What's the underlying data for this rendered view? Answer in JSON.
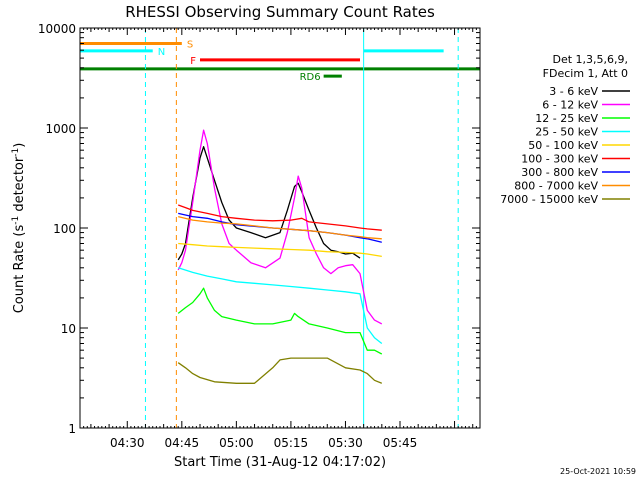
{
  "chart_data": {
    "type": "line",
    "title": "RHESSI Observing Summary Count Rates",
    "xlabel": "Start Time (31-Aug-12 04:17:02)",
    "ylabel_main": "Count Rate (s",
    "ylabel_sup1": "-1",
    "ylabel_mid": " detector",
    "ylabel_sup2": "-1",
    "ylabel_end": ")",
    "timestamp": "25-Oct-2021 10:59",
    "y_scale": "log",
    "ylim": [
      1,
      10000
    ],
    "xlim_minutes": [
      257,
      367
    ],
    "x_ticks": [
      {
        "label": "04:30",
        "t": 270
      },
      {
        "label": "04:45",
        "t": 285
      },
      {
        "label": "05:00",
        "t": 300
      },
      {
        "label": "05:15",
        "t": 315
      },
      {
        "label": "05:30",
        "t": 330
      },
      {
        "label": "05:45",
        "t": 345
      }
    ],
    "y_ticks": [
      {
        "label": "1",
        "v": 1
      },
      {
        "label": "10",
        "v": 10
      },
      {
        "label": "100",
        "v": 100
      },
      {
        "label": "1000",
        "v": 1000
      },
      {
        "label": "10000",
        "v": 10000
      }
    ],
    "legend_header": [
      "Det 1,3,5,6,9,",
      "FDecim 1, Att 0"
    ],
    "series": [
      {
        "name": "3 - 6 keV",
        "color": "#000000",
        "points": [
          [
            284,
            48
          ],
          [
            285,
            55
          ],
          [
            286,
            70
          ],
          [
            288,
            200
          ],
          [
            290,
            500
          ],
          [
            291,
            650
          ],
          [
            292,
            500
          ],
          [
            294,
            300
          ],
          [
            296,
            180
          ],
          [
            298,
            120
          ],
          [
            300,
            100
          ],
          [
            304,
            90
          ],
          [
            308,
            80
          ],
          [
            312,
            90
          ],
          [
            314,
            150
          ],
          [
            316,
            260
          ],
          [
            317,
            280
          ],
          [
            318,
            230
          ],
          [
            320,
            150
          ],
          [
            322,
            100
          ],
          [
            324,
            70
          ],
          [
            326,
            60
          ],
          [
            328,
            58
          ],
          [
            330,
            55
          ],
          [
            332,
            56
          ],
          [
            334,
            50
          ]
        ]
      },
      {
        "name": "6 - 12 keV",
        "color": "#ff00ff",
        "points": [
          [
            284,
            38
          ],
          [
            285,
            45
          ],
          [
            286,
            60
          ],
          [
            288,
            180
          ],
          [
            290,
            600
          ],
          [
            291,
            950
          ],
          [
            292,
            700
          ],
          [
            294,
            250
          ],
          [
            296,
            110
          ],
          [
            298,
            70
          ],
          [
            300,
            60
          ],
          [
            304,
            45
          ],
          [
            308,
            40
          ],
          [
            312,
            50
          ],
          [
            314,
            90
          ],
          [
            316,
            200
          ],
          [
            317,
            330
          ],
          [
            318,
            250
          ],
          [
            320,
            80
          ],
          [
            322,
            55
          ],
          [
            324,
            40
          ],
          [
            326,
            35
          ],
          [
            328,
            40
          ],
          [
            330,
            42
          ],
          [
            332,
            43
          ],
          [
            334,
            35
          ],
          [
            336,
            15
          ],
          [
            338,
            12
          ],
          [
            340,
            11
          ]
        ]
      },
      {
        "name": "12 - 25 keV",
        "color": "#00ff00",
        "points": [
          [
            284,
            14
          ],
          [
            286,
            16
          ],
          [
            288,
            18
          ],
          [
            290,
            22
          ],
          [
            291,
            25
          ],
          [
            292,
            20
          ],
          [
            294,
            15
          ],
          [
            296,
            13
          ],
          [
            300,
            12
          ],
          [
            305,
            11
          ],
          [
            310,
            11
          ],
          [
            315,
            12
          ],
          [
            316,
            14
          ],
          [
            317,
            13
          ],
          [
            320,
            11
          ],
          [
            325,
            10
          ],
          [
            330,
            9
          ],
          [
            334,
            9
          ],
          [
            336,
            6
          ],
          [
            338,
            6
          ],
          [
            340,
            5.5
          ]
        ]
      },
      {
        "name": "25 - 50 keV",
        "color": "#00ffff",
        "points": [
          [
            284,
            40
          ],
          [
            288,
            36
          ],
          [
            292,
            33
          ],
          [
            296,
            31
          ],
          [
            300,
            29
          ],
          [
            305,
            28
          ],
          [
            310,
            27
          ],
          [
            315,
            26
          ],
          [
            320,
            25
          ],
          [
            325,
            24
          ],
          [
            330,
            23
          ],
          [
            334,
            22
          ],
          [
            336,
            10
          ],
          [
            338,
            8
          ],
          [
            340,
            7
          ]
        ]
      },
      {
        "name": "50 - 100 keV",
        "color": "#ffd700",
        "points": [
          [
            284,
            70
          ],
          [
            288,
            68
          ],
          [
            292,
            66
          ],
          [
            296,
            65
          ],
          [
            300,
            64
          ],
          [
            305,
            63
          ],
          [
            310,
            62
          ],
          [
            315,
            61
          ],
          [
            320,
            60
          ],
          [
            325,
            58
          ],
          [
            330,
            57
          ],
          [
            334,
            56
          ],
          [
            336,
            55
          ],
          [
            340,
            52
          ]
        ]
      },
      {
        "name": "100 - 300 keV",
        "color": "#ff0000",
        "points": [
          [
            284,
            170
          ],
          [
            286,
            160
          ],
          [
            288,
            150
          ],
          [
            292,
            140
          ],
          [
            296,
            130
          ],
          [
            300,
            125
          ],
          [
            305,
            120
          ],
          [
            310,
            118
          ],
          [
            315,
            120
          ],
          [
            318,
            125
          ],
          [
            320,
            115
          ],
          [
            325,
            110
          ],
          [
            330,
            105
          ],
          [
            334,
            100
          ],
          [
            336,
            98
          ],
          [
            340,
            95
          ]
        ]
      },
      {
        "name": "300 - 800 keV",
        "color": "#0000ff",
        "points": [
          [
            284,
            140
          ],
          [
            288,
            130
          ],
          [
            292,
            125
          ],
          [
            296,
            115
          ],
          [
            300,
            108
          ],
          [
            305,
            104
          ],
          [
            310,
            100
          ],
          [
            315,
            97
          ],
          [
            320,
            94
          ],
          [
            325,
            90
          ],
          [
            330,
            85
          ],
          [
            334,
            80
          ],
          [
            336,
            78
          ],
          [
            340,
            72
          ]
        ]
      },
      {
        "name": "800 - 7000 keV",
        "color": "#ff8c00",
        "points": [
          [
            284,
            130
          ],
          [
            288,
            120
          ],
          [
            292,
            115
          ],
          [
            296,
            112
          ],
          [
            300,
            110
          ],
          [
            305,
            105
          ],
          [
            310,
            100
          ],
          [
            315,
            97
          ],
          [
            320,
            94
          ],
          [
            325,
            90
          ],
          [
            330,
            85
          ],
          [
            334,
            82
          ],
          [
            336,
            80
          ],
          [
            340,
            78
          ]
        ]
      },
      {
        "name": "7000 - 15000 keV",
        "color": "#808000",
        "points": [
          [
            284,
            4.5
          ],
          [
            286,
            4.0
          ],
          [
            288,
            3.5
          ],
          [
            290,
            3.2
          ],
          [
            294,
            2.9
          ],
          [
            300,
            2.8
          ],
          [
            305,
            2.8
          ],
          [
            310,
            4.0
          ],
          [
            312,
            4.8
          ],
          [
            315,
            5.0
          ],
          [
            320,
            5.0
          ],
          [
            325,
            5.0
          ],
          [
            330,
            4.0
          ],
          [
            334,
            3.8
          ],
          [
            336,
            3.5
          ],
          [
            338,
            3.0
          ],
          [
            340,
            2.8
          ]
        ]
      }
    ],
    "flags": [
      {
        "label": "S",
        "color": "#ff8c00",
        "t_start": 257,
        "t_end": 285,
        "v": 7000
      },
      {
        "label": "N",
        "color": "#00ffff",
        "t_start": 257,
        "t_end": 277,
        "v": 5900
      },
      {
        "label": "F",
        "color": "#ff0000",
        "t_start": 290,
        "t_end": 334,
        "v": 4800
      },
      {
        "label": "",
        "color": "#008000",
        "t_start": 257,
        "t_end": 367,
        "v": 3900
      },
      {
        "label": "RD6",
        "color": "#008000",
        "t_start": 324,
        "t_end": 329,
        "v": 3300
      },
      {
        "label": "",
        "color": "#00ffff",
        "t_start": 335,
        "t_end": 357,
        "v": 5900
      }
    ],
    "vlines": [
      {
        "t": 257,
        "color": "#00ffff",
        "dashed": false
      },
      {
        "t": 275,
        "color": "#00ffff",
        "dashed": true
      },
      {
        "t": 283.5,
        "color": "#ff8c00",
        "dashed": true
      },
      {
        "t": 335,
        "color": "#00ffff",
        "dashed": false
      },
      {
        "t": 361,
        "color": "#00ffff",
        "dashed": true
      }
    ]
  }
}
